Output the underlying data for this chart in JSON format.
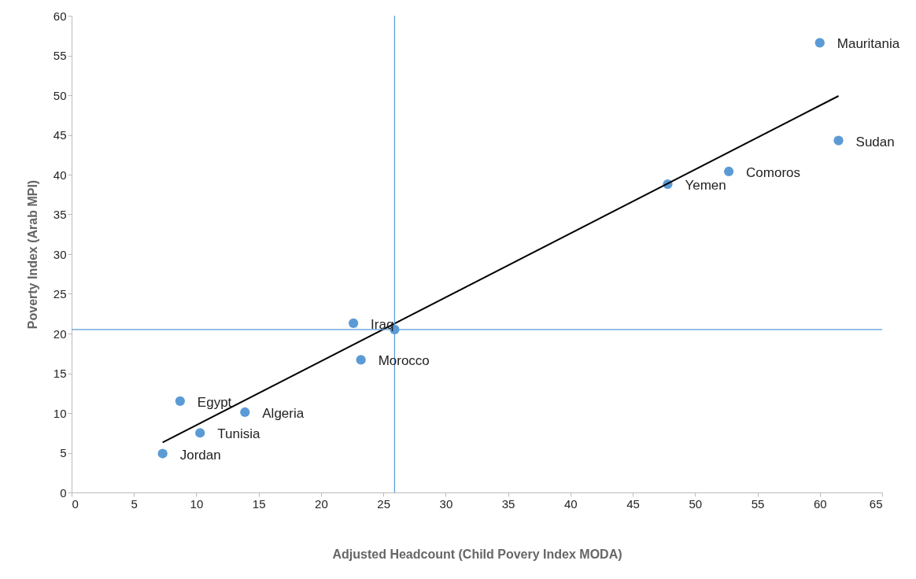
{
  "chart_data": {
    "type": "scatter",
    "xlabel": "Adjusted Headcount (Child Povery Index MODA)",
    "ylabel": "Poverty Index (Arab MPI)",
    "xlim": [
      0,
      65
    ],
    "xticks": [
      0,
      5,
      10,
      15,
      20,
      25,
      30,
      35,
      40,
      45,
      50,
      55,
      60,
      65
    ],
    "ylim": [
      0,
      60
    ],
    "yticks": [
      0,
      5,
      10,
      15,
      20,
      25,
      30,
      35,
      40,
      45,
      50,
      55,
      60
    ],
    "grid": false,
    "series": [
      {
        "marker": "circle",
        "color": "#5b9bd5",
        "x": [
          60.0,
          61.5,
          52.7,
          47.8,
          22.6,
          25.9,
          23.2,
          8.7,
          13.9,
          10.3,
          7.3
        ],
        "values": [
          56.6,
          44.3,
          40.4,
          38.8,
          21.3,
          20.5,
          16.7,
          11.5,
          10.1,
          7.5,
          4.9
        ]
      },
      {
        "type": "line",
        "color": "#000000",
        "x": [
          7.3,
          61.5
        ],
        "values": [
          6.3,
          49.9
        ]
      }
    ],
    "ref_lines": [
      {
        "axis": "x",
        "value": 25.9,
        "color": "#5b9bd5"
      },
      {
        "axis": "y",
        "value": 20.5,
        "color": "#5b9bd5"
      }
    ],
    "annotations": [
      {
        "text": "Mauritania",
        "x": 60.0,
        "y": 56.6
      },
      {
        "text": "Sudan",
        "x": 61.5,
        "y": 44.3
      },
      {
        "text": "Comoros",
        "x": 52.7,
        "y": 40.4
      },
      {
        "text": "Yemen",
        "x": 47.8,
        "y": 38.8
      },
      {
        "text": "Iraq",
        "x": 22.6,
        "y": 21.3
      },
      {
        "text": "Morocco",
        "x": 23.2,
        "y": 16.7
      },
      {
        "text": "Egypt",
        "x": 8.7,
        "y": 11.5
      },
      {
        "text": "Algeria",
        "x": 13.9,
        "y": 10.1
      },
      {
        "text": "Tunisia",
        "x": 10.3,
        "y": 7.5
      },
      {
        "text": "Jordan",
        "x": 7.3,
        "y": 4.9
      }
    ]
  }
}
